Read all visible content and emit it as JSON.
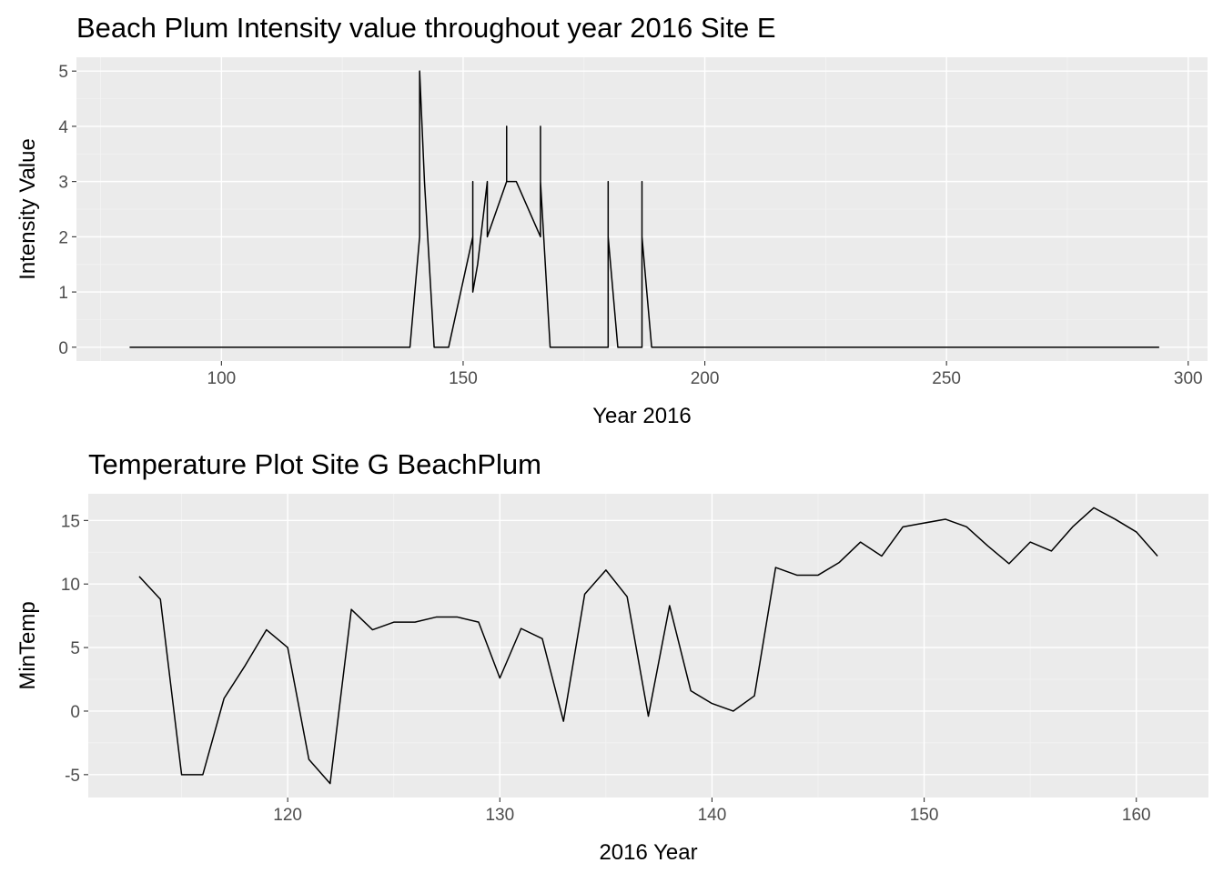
{
  "chart_data": [
    {
      "type": "line",
      "title": "Beach Plum Intensity value throughout year 2016 Site E",
      "xlabel": "Year 2016",
      "ylabel": "Intensity Value",
      "xlim": [
        70,
        304
      ],
      "ylim": [
        -0.25,
        5.25
      ],
      "x_ticks": [
        100,
        150,
        200,
        250,
        300
      ],
      "y_ticks": [
        0,
        1,
        2,
        3,
        4,
        5
      ],
      "grid": true,
      "legend": "none",
      "x": [
        81,
        139,
        141,
        141,
        142,
        144,
        147,
        152,
        152,
        152,
        153,
        155,
        155,
        155,
        159,
        159,
        159,
        161,
        166,
        166,
        166,
        168,
        180,
        180,
        180,
        182,
        187,
        187,
        187,
        189,
        294
      ],
      "y": [
        0,
        0,
        2,
        5,
        3,
        0,
        0,
        2,
        3,
        1,
        1.5,
        3,
        3,
        2,
        3,
        4,
        3,
        3,
        2,
        4,
        3,
        0,
        0,
        3,
        2,
        0,
        0,
        3,
        2,
        0,
        0
      ]
    },
    {
      "type": "line",
      "title": "Temperature Plot Site G BeachPlum",
      "xlabel": "2016 Year",
      "ylabel": "MinTemp",
      "xlim": [
        110.6,
        163.4
      ],
      "ylim": [
        -6.8,
        17.1
      ],
      "x_ticks": [
        120,
        130,
        140,
        150,
        160
      ],
      "y_ticks": [
        -5,
        0,
        5,
        10,
        15
      ],
      "y_tick_labels": [
        "-5",
        "0",
        "5",
        "10",
        "15"
      ],
      "grid": true,
      "legend": "none",
      "x": [
        113,
        114,
        115,
        116,
        117,
        118,
        119,
        120,
        121,
        122,
        123,
        124,
        125,
        126,
        127,
        128,
        129,
        130,
        131,
        132,
        133,
        134,
        135,
        136,
        137,
        138,
        139,
        140,
        141,
        142,
        143,
        144,
        145,
        146,
        147,
        148,
        149,
        150,
        151,
        152,
        153,
        154,
        155,
        156,
        157,
        158,
        159,
        160,
        161
      ],
      "y": [
        10.6,
        8.8,
        -5.0,
        -5.0,
        1.0,
        3.6,
        6.4,
        5.0,
        -3.8,
        -5.7,
        8.0,
        6.4,
        7.0,
        7.0,
        7.4,
        7.4,
        7.0,
        2.6,
        6.5,
        5.7,
        -0.8,
        9.2,
        11.1,
        9.0,
        -0.4,
        8.3,
        1.6,
        0.6,
        0.0,
        1.2,
        11.3,
        10.7,
        10.7,
        11.7,
        13.3,
        12.2,
        14.5,
        14.8,
        15.1,
        14.5,
        13.0,
        11.6,
        13.3,
        12.6,
        14.5,
        16.0,
        15.1,
        14.1,
        12.2
      ]
    }
  ]
}
